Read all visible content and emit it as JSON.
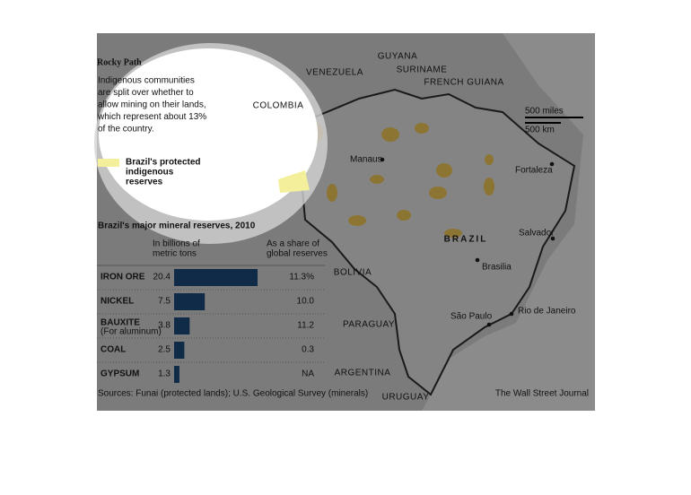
{
  "header": {
    "title": "Rocky Path",
    "description_lines": [
      "Indigenous communities",
      "are split over whether to",
      "allow mining on their lands,",
      "which represent about 13%",
      "of the country."
    ]
  },
  "legend": {
    "label_lines": [
      "Brazil's protected",
      "indigenous",
      "reserves"
    ],
    "color": "#f3ef9a"
  },
  "map": {
    "countries": [
      "VENEZUELA",
      "GUYANA",
      "SURINAME",
      "FRENCH GUIANA",
      "COLOMBIA",
      "BRAZIL",
      "BOLIVIA",
      "PARAGUAY",
      "ARGENTINA",
      "URUGUAY"
    ],
    "cities": [
      "Manaus",
      "Fortaleza",
      "Salvador",
      "Brasilia",
      "São Paulo",
      "Rio de Janeiro"
    ],
    "scale": [
      "500 miles",
      "500 km"
    ]
  },
  "chart_data": {
    "type": "bar",
    "title": "Brazil's major mineral reserves, 2010",
    "value_header_lines": [
      "In billions of",
      "metric tons"
    ],
    "share_header_lines": [
      "As a share of",
      "global reserves"
    ],
    "categories": [
      "IRON ORE",
      "NICKEL",
      "BAUXITE",
      "COAL",
      "GYPSUM"
    ],
    "category_notes": [
      null,
      null,
      "(For aluminum)",
      null,
      null
    ],
    "values": [
      20.4,
      7.5,
      3.8,
      2.5,
      1.3
    ],
    "share_labels": [
      "11.3%",
      "10.0",
      "11.2",
      "0.3",
      "NA"
    ],
    "color": "#0f2b47"
  },
  "footer": {
    "source": "Sources: Funai (protected lands); U.S. Geological Survey (minerals)",
    "credit": "The Wall Street Journal"
  }
}
